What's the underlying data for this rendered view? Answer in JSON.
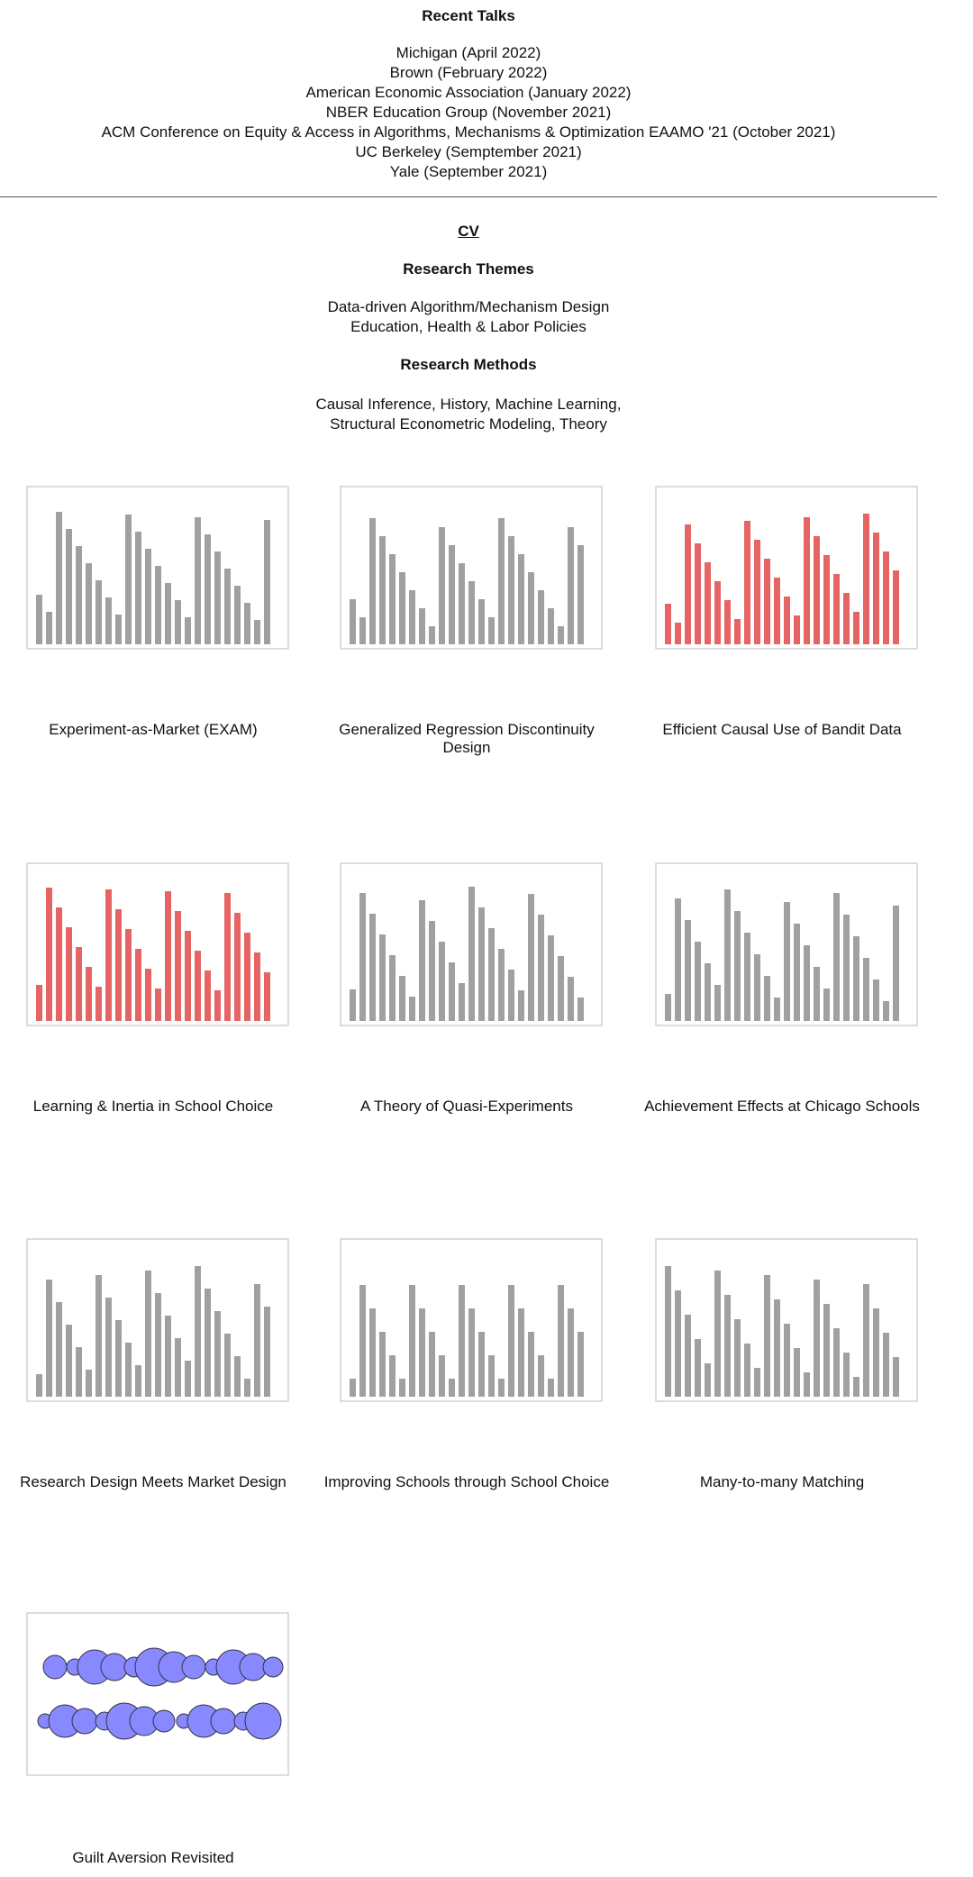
{
  "talks": {
    "title": "Recent Talks",
    "items": [
      "Michigan (April 2022)",
      "Brown (February 2022)",
      "American Economic Association (January 2022)",
      "NBER Education Group (November 2021)",
      "ACM Conference on Equity & Access in Algorithms, Mechanisms & Optimization EAAMO '21 (October 2021)",
      "UC Berkeley (Semptember 2021)",
      "Yale (September 2021)"
    ]
  },
  "cv": "CV",
  "themes": {
    "title": "Research Themes",
    "lines": [
      "Data-driven Algorithm/Mechanism Design",
      "Education, Health & Labor Policies"
    ]
  },
  "methods": {
    "title": "Research Methods",
    "lines": [
      "Causal Inference, History, Machine Learning,",
      "Structural Econometric Modeling, Theory"
    ]
  },
  "projects": [
    "Experiment-as-Market (EXAM)",
    "Generalized Regression Discontinuity Design",
    "Efficient Causal Use of Bandit Data",
    "Learning & Inertia in School Choice",
    "A Theory of Quasi-Experiments",
    "Achievement Effects at Chicago Schools",
    "Research Design Meets Market Design",
    "Improving Schools through School Choice",
    "Many-to-many Matching",
    "Guilt Aversion Revisited"
  ]
}
